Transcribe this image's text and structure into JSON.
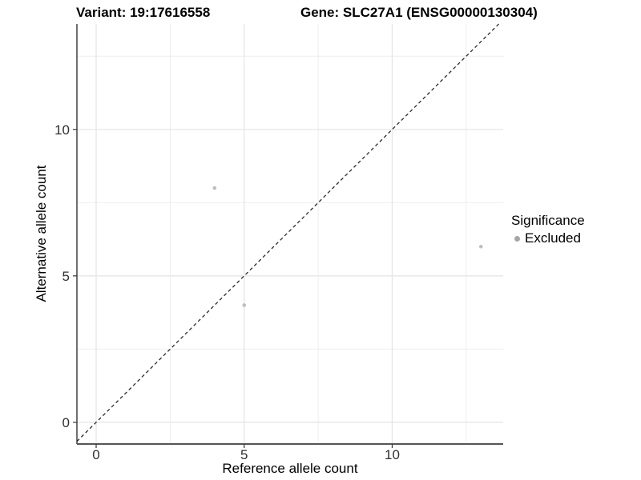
{
  "chart_data": {
    "type": "scatter",
    "title_left": "Variant: 19:17616558",
    "title_right": "Gene: SLC27A1 (ENSG00000130304)",
    "xlabel": "Reference allele count",
    "ylabel": "Alternative allele count",
    "xlim": [
      -0.65,
      13.75
    ],
    "ylim": [
      -0.74,
      13.6
    ],
    "x_major_ticks": [
      0,
      5,
      10
    ],
    "y_major_ticks": [
      0,
      5,
      10
    ],
    "x_minor_ticks": [
      2.5,
      7.5,
      12.5
    ],
    "y_minor_ticks": [
      2.5,
      7.5,
      12.5
    ],
    "grid": true,
    "identity_line": {
      "style": "dashed",
      "slope": 1,
      "intercept": 0
    },
    "series": [
      {
        "name": "Excluded",
        "points": [
          {
            "x": 4,
            "y": 8
          },
          {
            "x": 5,
            "y": 4
          },
          {
            "x": 13,
            "y": 6
          }
        ]
      }
    ],
    "legend": {
      "title": "Significance",
      "position": "right",
      "entries": [
        {
          "label": "Excluded"
        }
      ]
    },
    "colors": {
      "point": "#bfbfbf",
      "legend_point": "#a6a6a6",
      "grid_major": "#e4e4e4",
      "grid_minor": "#ededed",
      "identity_line": "#2b2b2b",
      "axis_line_left": "#111111",
      "axis_line_bottom": "#555555",
      "tick_mark": "#333333",
      "tick_label": "#303030"
    }
  }
}
